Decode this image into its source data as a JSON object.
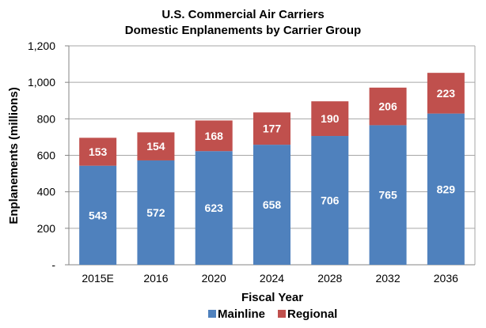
{
  "chart_data": {
    "type": "bar",
    "stacked": true,
    "title": [
      "U.S. Commercial Air Carriers",
      "Domestic Enplanements by Carrier Group"
    ],
    "xlabel": "Fiscal Year",
    "ylabel": "Enplanements (millions)",
    "categories": [
      "2015E",
      "2016",
      "2020",
      "2024",
      "2028",
      "2032",
      "2036"
    ],
    "series": [
      {
        "name": "Mainline",
        "color": "#4f81bd",
        "values": [
          543,
          572,
          623,
          658,
          706,
          765,
          829
        ]
      },
      {
        "name": "Regional",
        "color": "#c0504d",
        "values": [
          153,
          154,
          168,
          177,
          190,
          206,
          223
        ]
      }
    ],
    "ylim": [
      0,
      1200
    ],
    "yticks": [
      0,
      200,
      400,
      600,
      800,
      1000,
      1200
    ],
    "ytick_labels": [
      "-",
      "200",
      "400",
      "600",
      "800",
      "1,000",
      "1,200"
    ],
    "grid": true,
    "legend_position": "bottom"
  }
}
